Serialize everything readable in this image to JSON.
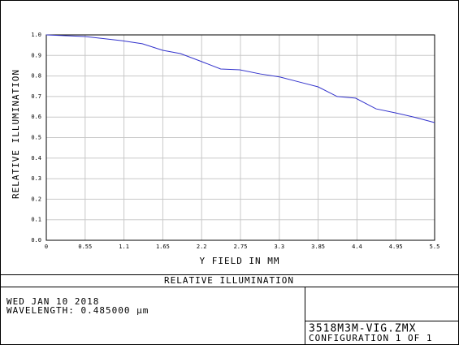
{
  "chart_data": {
    "type": "line",
    "title": "RELATIVE ILLUMINATION",
    "x_label": "Y FIELD IN  MM",
    "y_label": "RELATIVE ILLUMINATION",
    "x": [
      0,
      0.55,
      1.07,
      1.36,
      1.65,
      1.9,
      2.2,
      2.47,
      2.74,
      3.03,
      3.31,
      3.58,
      3.85,
      4.12,
      4.38,
      4.67,
      4.95,
      5.24,
      5.5
    ],
    "series": [
      {
        "color": "#3333cc",
        "values": [
          1.0,
          0.992,
          0.972,
          0.957,
          0.925,
          0.909,
          0.87,
          0.834,
          0.83,
          0.81,
          0.795,
          0.771,
          0.747,
          0.7,
          0.692,
          0.64,
          0.62,
          0.597,
          0.573
        ]
      }
    ],
    "xlim": [
      0,
      5.5
    ],
    "ylim": [
      0,
      1
    ],
    "xticks": [
      0,
      0.55,
      1.1,
      1.65,
      2.2,
      2.75,
      3.3,
      3.85,
      4.4,
      4.95,
      5.5
    ],
    "yticks": [
      {
        "value": 0,
        "label": "0.0"
      },
      0.1,
      0.2,
      0.3,
      0.4,
      0.5,
      0.6,
      0.7,
      0.8,
      0.9,
      {
        "value": 1,
        "label": "1.0"
      }
    ],
    "grid": true
  },
  "info": {
    "date": "WED JAN 10 2018",
    "wavelength": "WAVELENGTH: 0.485000 µm",
    "file": "3518M3M-VIG.ZMX",
    "configuration": "CONFIGURATION 1 OF 1"
  }
}
